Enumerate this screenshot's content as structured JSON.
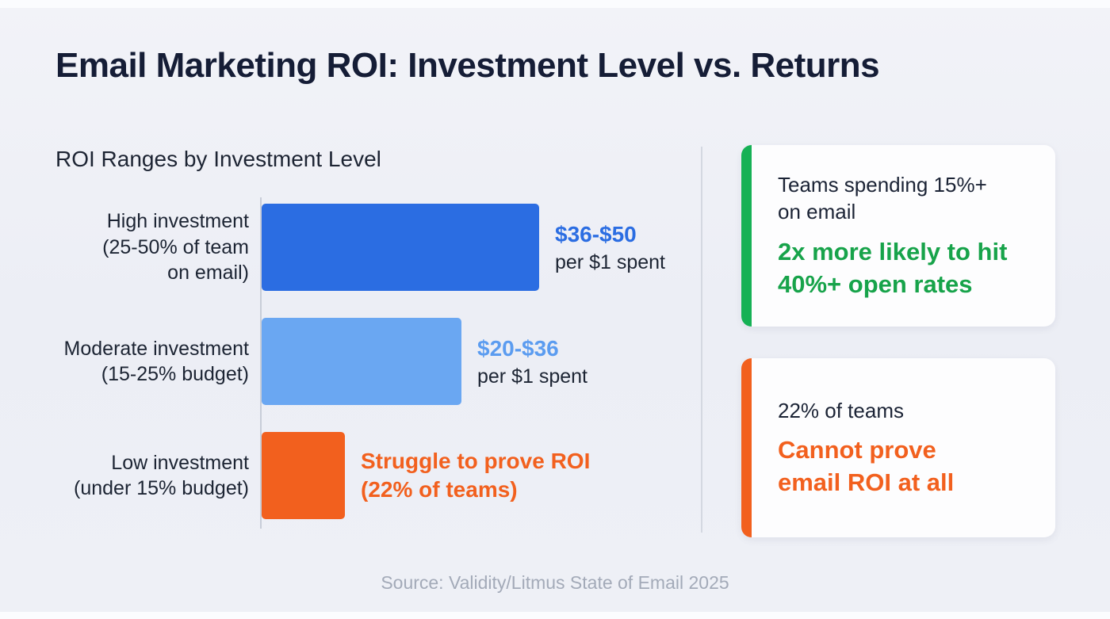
{
  "title": "Email Marketing ROI: Investment Level vs. Returns",
  "source": "Source: Validity/Litmus State of Email 2025",
  "chart_data": {
    "type": "bar",
    "orientation": "horizontal",
    "title": "ROI Ranges by Investment Level",
    "categories": [
      "High investment\n(25-50% of team\non email)",
      "Moderate investment\n(15-25% budget)",
      "Low investment\n(under 15% budget)"
    ],
    "values": [
      50,
      36,
      15
    ],
    "xlim": [
      0,
      50
    ],
    "grid": false,
    "legend": "none",
    "bar_colors": [
      "#2b6de2",
      "#6aa7f2",
      "#f2601e"
    ],
    "value_label_colors": [
      "#2b6de2",
      "#5b9cf0",
      "#f2601e"
    ],
    "value_labels": [
      "$36-$50",
      "$20-$36",
      "Struggle to prove ROI\n(22% of teams)"
    ],
    "value_sublabels": [
      "per $1 spent",
      "per $1 spent",
      ""
    ]
  },
  "cards": [
    {
      "lead": "Teams spending 15%+\non email",
      "highlight": "2x more likely to hit\n40%+ open rates",
      "accent_color": "#16b155",
      "highlight_color": "#17a34a"
    },
    {
      "lead": "22% of teams",
      "highlight": "Cannot prove\nemail ROI at all",
      "accent_color": "#f2601e",
      "highlight_color": "#f2601e"
    }
  ]
}
